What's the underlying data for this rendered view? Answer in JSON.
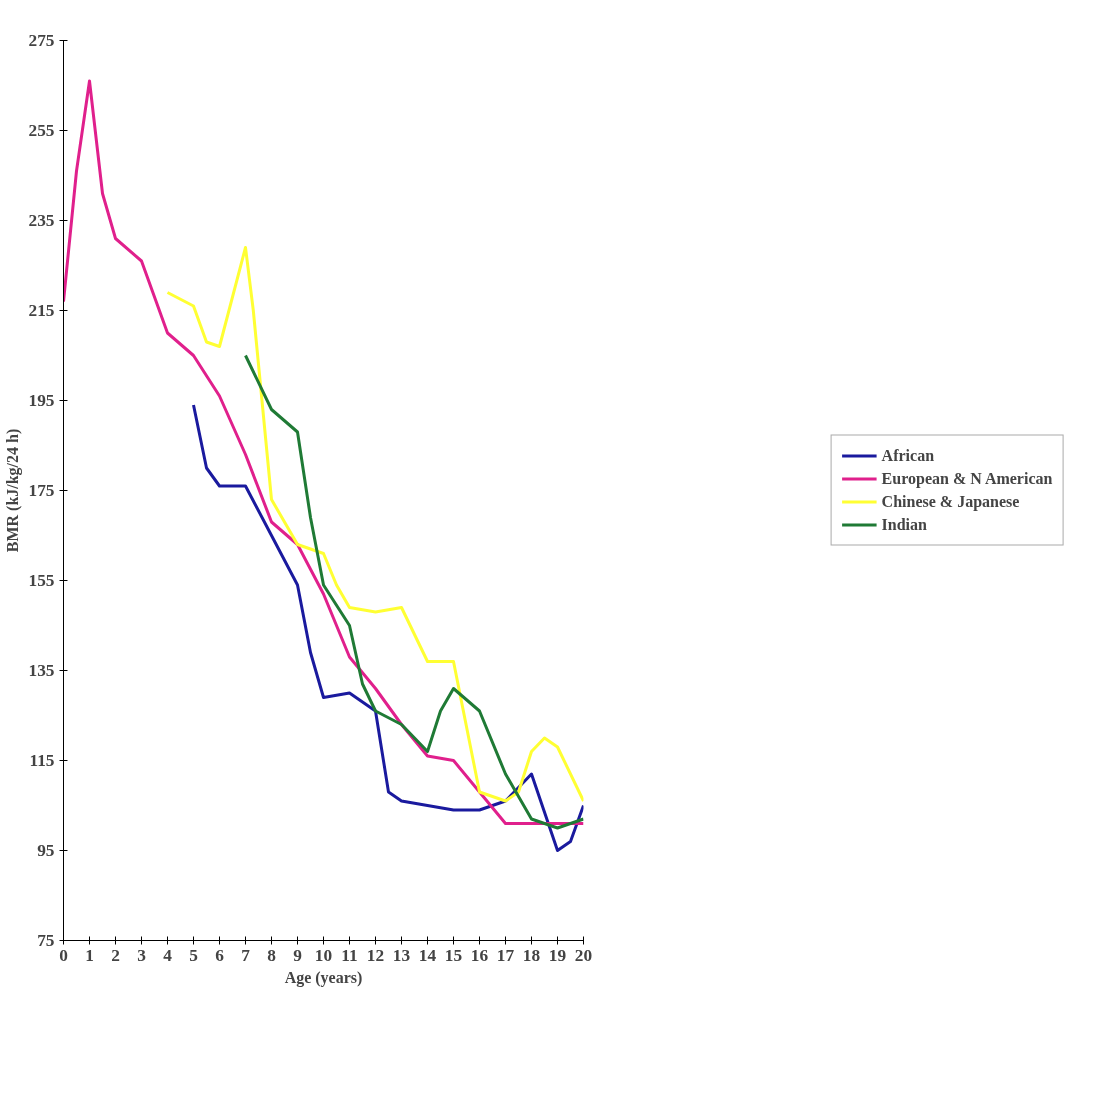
{
  "chart_data": {
    "type": "line",
    "xlabel": "Age (years)",
    "ylabel": "BMR (kJ/kg/24 h)",
    "xlim": [
      0,
      20
    ],
    "ylim": [
      75,
      275
    ],
    "xticks": [
      0,
      1,
      2,
      3,
      4,
      5,
      6,
      7,
      8,
      9,
      10,
      11,
      12,
      13,
      14,
      15,
      16,
      17,
      18,
      19,
      20
    ],
    "yticks": [
      75,
      95,
      115,
      135,
      155,
      175,
      195,
      215,
      235,
      255,
      275
    ],
    "grid": false,
    "legend": "right",
    "line_style": "solid",
    "marker": "none",
    "series": [
      {
        "name": "African",
        "color": "#1a1a9e",
        "x": [
          5,
          5.5,
          6,
          7,
          8,
          9,
          9.5,
          10,
          11,
          12,
          12.5,
          13,
          14,
          15,
          16,
          17,
          18,
          19,
          19.5,
          20
        ],
        "values": [
          194,
          180,
          176,
          176,
          165,
          154,
          139,
          129,
          130,
          126,
          108,
          106,
          105,
          104,
          104,
          106,
          112,
          95,
          97,
          105
        ]
      },
      {
        "name": "European & N American",
        "color": "#e0208c",
        "x": [
          0,
          0.5,
          1,
          1.5,
          2,
          3,
          4,
          5,
          6,
          7,
          8,
          9,
          10,
          11,
          12,
          13,
          14,
          15,
          16,
          17,
          18,
          19,
          20
        ],
        "values": [
          217,
          246,
          266,
          241,
          231,
          226,
          210,
          205,
          196,
          183,
          168,
          163,
          152,
          138,
          131,
          123,
          116,
          115,
          108,
          101,
          101,
          101,
          101
        ]
      },
      {
        "name": "Chinese & Japanese",
        "color": "#ffff33",
        "x": [
          4,
          5,
          5.5,
          6,
          7,
          7.3,
          8,
          9,
          10,
          10.5,
          11,
          12,
          13,
          14,
          15,
          16,
          17,
          17.5,
          18,
          18.5,
          19,
          20
        ],
        "values": [
          219,
          216,
          208,
          207,
          229,
          215,
          173,
          163,
          161,
          154,
          149,
          148,
          149,
          137,
          137,
          108,
          106,
          108,
          117,
          120,
          118,
          106
        ]
      },
      {
        "name": "Indian",
        "color": "#1f7a35",
        "x": [
          7,
          8,
          9,
          9.5,
          10,
          11,
          11.5,
          12,
          13,
          14,
          14.5,
          15,
          16,
          17,
          18,
          19,
          20
        ],
        "values": [
          205,
          193,
          188,
          169,
          154,
          145,
          132,
          126,
          123,
          117,
          126,
          131,
          126,
          112,
          102,
          100,
          102
        ]
      }
    ]
  }
}
